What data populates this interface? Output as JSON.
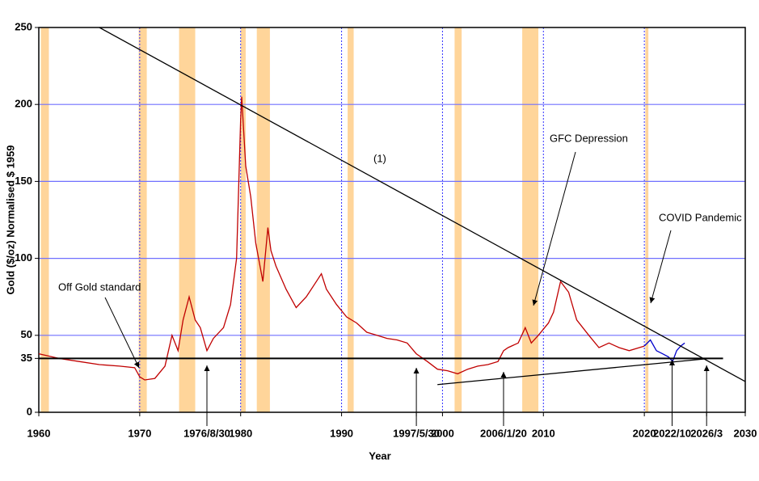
{
  "chart_data": {
    "type": "line",
    "y_label": "Gold ($/oz) Normalised $ 1959",
    "x_label": "Year",
    "xlim": [
      1960,
      2030
    ],
    "ylim": [
      0,
      250
    ],
    "xticks": [
      1960,
      1970,
      {
        "value": 1976.66,
        "label": "1976/8/30"
      },
      1980,
      1990,
      {
        "value": 1997.41,
        "label": "1997/5/30"
      },
      2000,
      {
        "value": 2006.05,
        "label": "2006/1/20"
      },
      2010,
      2020,
      {
        "value": 2022.75,
        "label": "2022/10"
      },
      {
        "value": 2026.17,
        "label": "2026/3"
      },
      2030
    ],
    "yticks": [
      0,
      35,
      50,
      100,
      150,
      200,
      250
    ],
    "grid": true,
    "xgrid": [
      1970,
      1980,
      1990,
      2000,
      2010,
      2020
    ],
    "shaded_regions": [
      [
        1960.2,
        1961.0
      ],
      [
        1969.9,
        1970.7
      ],
      [
        1973.9,
        1975.5
      ],
      [
        1980.0,
        1980.5
      ],
      [
        1981.6,
        1982.9
      ],
      [
        1990.6,
        1991.2
      ],
      [
        2001.2,
        2001.9
      ],
      [
        2007.9,
        2009.5
      ],
      [
        2020.1,
        2020.4
      ]
    ],
    "shade_color": "#ffd59a",
    "series": [
      {
        "color": "#c00000",
        "x": [
          1960,
          1962,
          1964,
          1966,
          1968,
          1969.5,
          1970.0,
          1970.5,
          1971.5,
          1972.5,
          1973.2,
          1973.8,
          1974.3,
          1974.9,
          1975.5,
          1976.0,
          1976.66,
          1977.3,
          1978.3,
          1979.0,
          1979.6,
          1980.0,
          1980.1,
          1980.5,
          1981.0,
          1981.5,
          1982.2,
          1982.7,
          1983.0,
          1983.5,
          1984.5,
          1985.5,
          1986.5,
          1987.5,
          1988.0,
          1988.5,
          1989.5,
          1990.5,
          1991.5,
          1992.5,
          1993.5,
          1994.5,
          1995.5,
          1996.5,
          1997.4,
          1998.5,
          1999.5,
          2000.5,
          2001.5,
          2002.5,
          2003.5,
          2004.5,
          2005.5,
          2006.05,
          2006.5,
          2007.5,
          2008.2,
          2008.8,
          2009.5,
          2010.5,
          2011.0,
          2011.7,
          2012.5,
          2013.3,
          2014.5,
          2015.5,
          2016.5,
          2017.5,
          2018.5,
          2019.5,
          2020.0
        ],
        "values": [
          38,
          35,
          33,
          31,
          30,
          29,
          23,
          21,
          22,
          30,
          50,
          40,
          60,
          75,
          60,
          55,
          40,
          48,
          55,
          70,
          100,
          190,
          205,
          160,
          140,
          110,
          85,
          120,
          105,
          95,
          80,
          68,
          75,
          85,
          90,
          80,
          70,
          62,
          58,
          52,
          50,
          48,
          47,
          45,
          38,
          33,
          28,
          27,
          25,
          28,
          30,
          31,
          33,
          40,
          42,
          45,
          55,
          45,
          50,
          58,
          65,
          85,
          78,
          60,
          50,
          42,
          45,
          42,
          40,
          42,
          43
        ]
      },
      {
        "color": "#0000cc",
        "x": [
          2020.0,
          2020.6,
          2021.2,
          2021.8,
          2022.4,
          2022.8,
          2023.2,
          2023.6,
          2024.0
        ],
        "values": [
          43,
          47,
          40,
          38,
          36,
          33,
          40,
          43,
          45
        ]
      }
    ],
    "reference_lines": [
      {
        "x": [
          1966,
          2030
        ],
        "y": [
          250,
          20
        ]
      },
      {
        "x": [
          1999.5,
          2026.5
        ],
        "y": [
          18,
          35
        ]
      },
      {
        "x": [
          1960,
          2027.8
        ],
        "y": [
          35,
          35
        ]
      }
    ],
    "annotations": [
      "Off Gold standard",
      "GFC Depression",
      "COVID Pandemic",
      "(1)"
    ]
  }
}
